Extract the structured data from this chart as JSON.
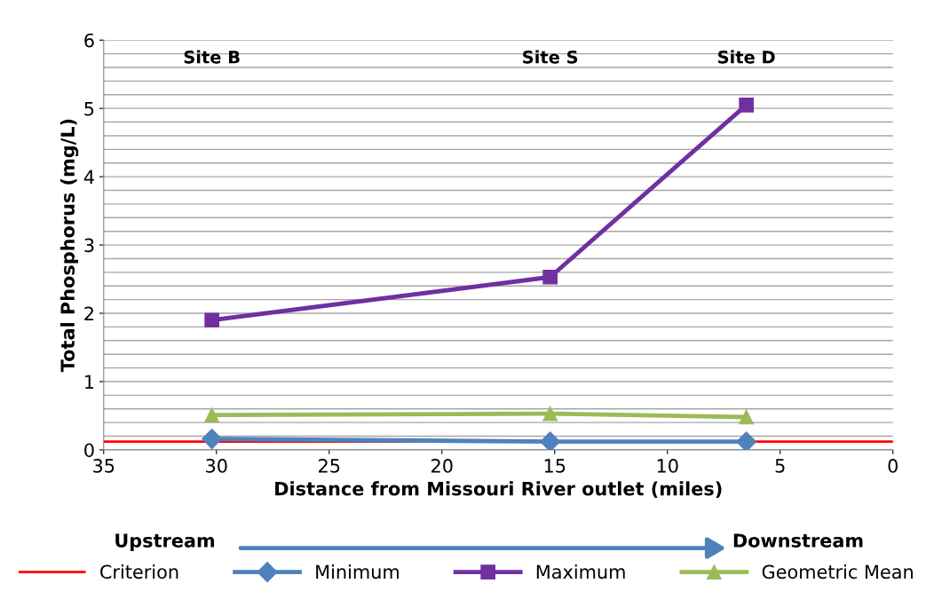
{
  "chart_data": {
    "type": "line",
    "xlabel": "Distance from Missouri River outlet (miles)",
    "ylabel": "Total Phosphorus (mg/L)",
    "x": [
      30.2,
      15.2,
      6.5
    ],
    "series": [
      {
        "name": "Minimum",
        "color": "#4f81bd",
        "marker": "diamond",
        "values": [
          0.16,
          0.12,
          0.12
        ]
      },
      {
        "name": "Maximum",
        "color": "#7030a0",
        "marker": "square",
        "values": [
          1.9,
          2.53,
          5.05
        ]
      },
      {
        "name": "Geometric Mean",
        "color": "#9bbb59",
        "marker": "triangle",
        "values": [
          0.51,
          0.53,
          0.48
        ]
      }
    ],
    "ref_lines": [
      {
        "axis": "y",
        "value": 0.12,
        "label": "Criterion",
        "color": "#ff0000"
      }
    ],
    "xlim": [
      35,
      0
    ],
    "xticks": [
      35,
      30,
      25,
      20,
      15,
      10,
      5,
      0
    ],
    "ylim": [
      0,
      6
    ],
    "yticks": [
      0,
      {
        "value": 0.2,
        "label": null
      },
      {
        "value": 0.4,
        "label": null
      },
      {
        "value": 0.6,
        "label": null
      },
      {
        "value": 0.8,
        "label": null
      },
      1,
      {
        "value": 1.2,
        "label": null
      },
      {
        "value": 1.4,
        "label": null
      },
      {
        "value": 1.6,
        "label": null
      },
      {
        "value": 1.8,
        "label": null
      },
      2,
      {
        "value": 2.2,
        "label": null
      },
      {
        "value": 2.4,
        "label": null
      },
      {
        "value": 2.6,
        "label": null
      },
      {
        "value": 2.8,
        "label": null
      },
      3,
      {
        "value": 3.2,
        "label": null
      },
      {
        "value": 3.4,
        "label": null
      },
      {
        "value": 3.6,
        "label": null
      },
      {
        "value": 3.8,
        "label": null
      },
      4,
      {
        "value": 4.2,
        "label": null
      },
      {
        "value": 4.4,
        "label": null
      },
      {
        "value": 4.6,
        "label": null
      },
      {
        "value": 4.8,
        "label": null
      },
      5,
      {
        "value": 5.2,
        "label": null
      },
      {
        "value": 5.4,
        "label": null
      },
      {
        "value": 5.6,
        "label": null
      },
      {
        "value": 5.8,
        "label": null
      },
      6
    ],
    "grid": "y",
    "legend": "bottom",
    "line_style": "solid",
    "annotations": [
      "Site B",
      "Site S",
      "Site D",
      "Upstream",
      "Downstream"
    ]
  }
}
